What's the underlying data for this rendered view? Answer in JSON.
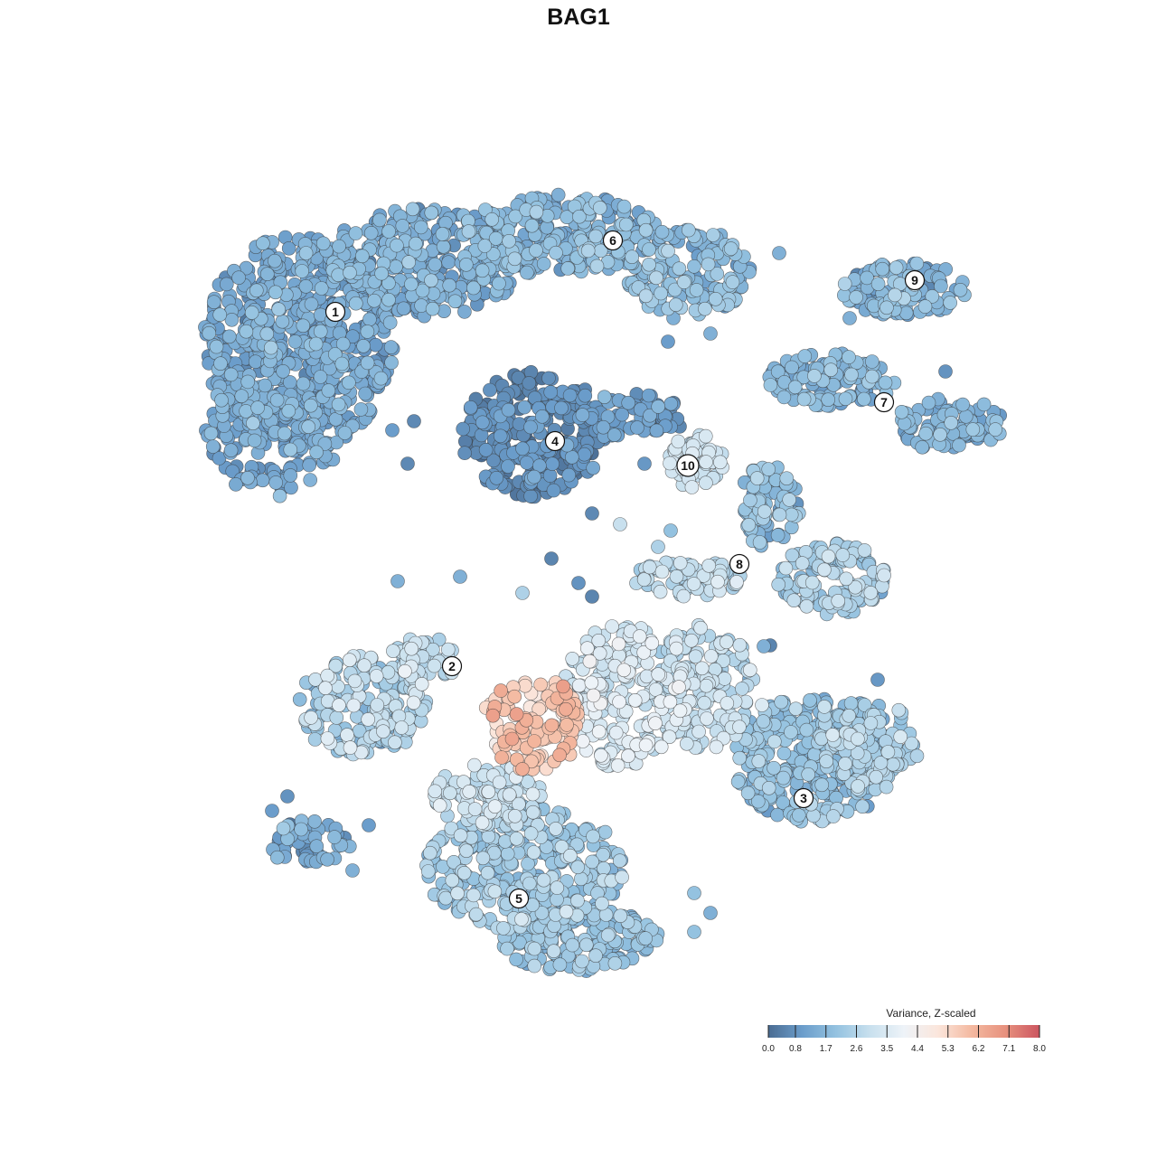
{
  "chart_data": {
    "type": "scatter",
    "title": "BAG1",
    "xlabel": "",
    "ylabel": "",
    "grid": false,
    "legend_position": "bottom-right",
    "colorbar": {
      "title": "Variance, Z-scaled",
      "min": 0.0,
      "max": 8.0,
      "ticks": [
        "0.0",
        "0.8",
        "1.7",
        "2.6",
        "3.5",
        "4.4",
        "5.3",
        "6.2",
        "7.1",
        "8.0"
      ],
      "colors": [
        "#4a6c92",
        "#6b9dcb",
        "#94c2e0",
        "#c8e0ee",
        "#eef3f8",
        "#fbe6dc",
        "#f4b9a0",
        "#e7917e",
        "#cc5560"
      ]
    },
    "cluster_labels": [
      "1",
      "2",
      "3",
      "4",
      "5",
      "6",
      "7",
      "8",
      "9",
      "10"
    ]
  }
}
